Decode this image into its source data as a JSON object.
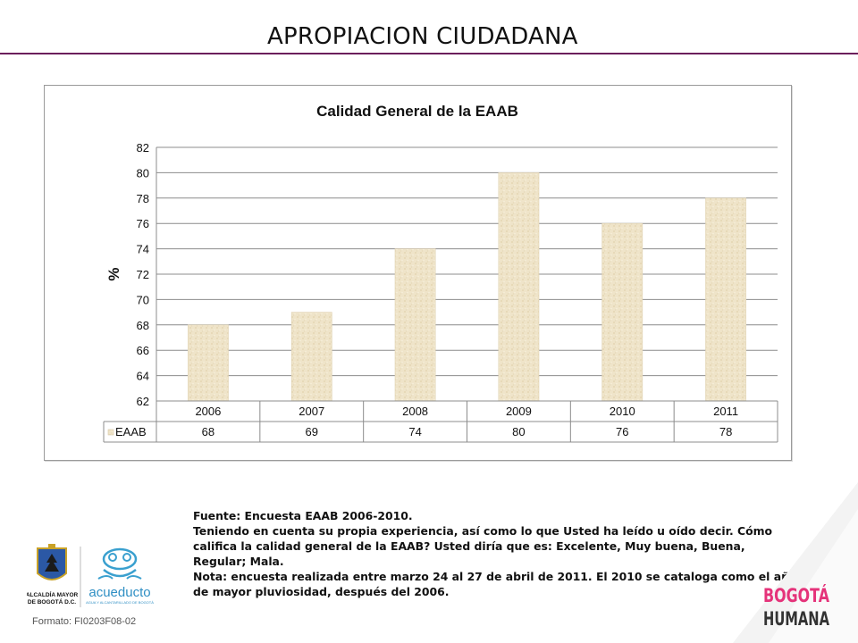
{
  "slide": {
    "title": "APROPIACION CIUDADANA",
    "accent_color": "#6b1f5c"
  },
  "chart_data": {
    "type": "bar",
    "title": "Calidad General de la EAAB",
    "ylabel": "%",
    "xlabel": "",
    "categories": [
      "2006",
      "2007",
      "2008",
      "2009",
      "2010",
      "2011"
    ],
    "series": [
      {
        "name": "EAAB",
        "values": [
          68,
          69,
          74,
          80,
          76,
          78
        ]
      }
    ],
    "ylim": [
      62,
      82
    ],
    "yticks": [
      "82",
      "80",
      "78",
      "76",
      "74",
      "72",
      "70",
      "68",
      "66",
      "64",
      "62"
    ],
    "grid": true,
    "data_table": true,
    "bar_color": "#eee2c6"
  },
  "notes": {
    "source": "Fuente: Encuesta EAAB 2006-2010.",
    "question": "Teniendo en cuenta su propia experiencia, así como lo que Usted ha leído u oído decir. Cómo califica la calidad general de la EAAB? Usted diría que es: Excelente, Muy buena, Buena, Regular; Mala.",
    "note": "Nota: encuesta realizada entre marzo 24 al 27 de abril de 2011. El 2010 se cataloga como el año de mayor pluviosidad, después del 2006."
  },
  "footer": {
    "alcaldia_label": "ALCALDÍA MAYOR DE BOGOTÁ D.C.",
    "acueducto_label": "acueducto",
    "acueducto_sub": "AGUA Y ALCANTARILLADO DE BOGOTÁ",
    "format_code": "Formato: FI0203F08-02",
    "bogota_logo_top": "BOGOTÁ",
    "bogota_logo_bottom": "HUMANA"
  }
}
